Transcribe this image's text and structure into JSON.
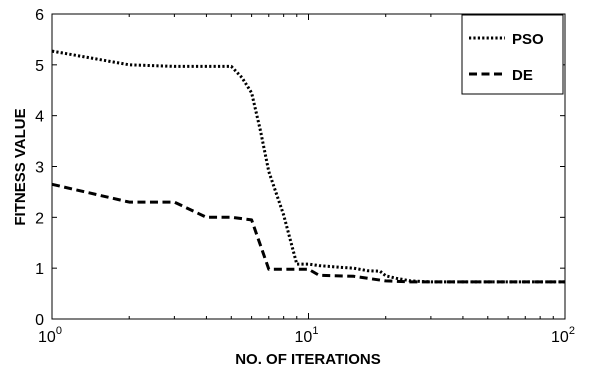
{
  "chart_data": {
    "type": "line",
    "xscale": "log",
    "xlim": [
      1,
      100
    ],
    "ylim": [
      0,
      6
    ],
    "xlabel": "NO. OF ITERATIONS",
    "ylabel": "FITNESS VALUE",
    "grid": false,
    "legend_position": "top-right",
    "y_ticks": [
      "0",
      "1",
      "2",
      "3",
      "4",
      "5",
      "6"
    ],
    "x_ticks": [
      {
        "base": "10",
        "exp": "0"
      },
      {
        "base": "10",
        "exp": "1"
      },
      {
        "base": "10",
        "exp": "2"
      }
    ],
    "series": [
      {
        "name": "PSO",
        "style": "dotted",
        "x": [
          1,
          2,
          3,
          4,
          5,
          5.5,
          6,
          6.5,
          7,
          8,
          9,
          10,
          11,
          13,
          15,
          17,
          19,
          20,
          22,
          25,
          30,
          40,
          50,
          70,
          100
        ],
        "y": [
          5.27,
          5.0,
          4.97,
          4.97,
          4.97,
          4.75,
          4.45,
          3.7,
          2.9,
          2.05,
          1.08,
          1.08,
          1.05,
          1.02,
          1.0,
          0.95,
          0.94,
          0.85,
          0.8,
          0.75,
          0.73,
          0.73,
          0.73,
          0.73,
          0.73
        ]
      },
      {
        "name": "DE",
        "style": "dashed",
        "x": [
          1,
          2,
          3,
          4,
          5,
          6,
          7,
          8,
          9,
          10,
          11,
          15,
          20,
          25,
          30,
          50,
          100
        ],
        "y": [
          2.65,
          2.3,
          2.3,
          2.0,
          2.0,
          1.95,
          0.98,
          0.98,
          0.98,
          0.98,
          0.86,
          0.84,
          0.75,
          0.73,
          0.73,
          0.73,
          0.73
        ]
      }
    ]
  }
}
